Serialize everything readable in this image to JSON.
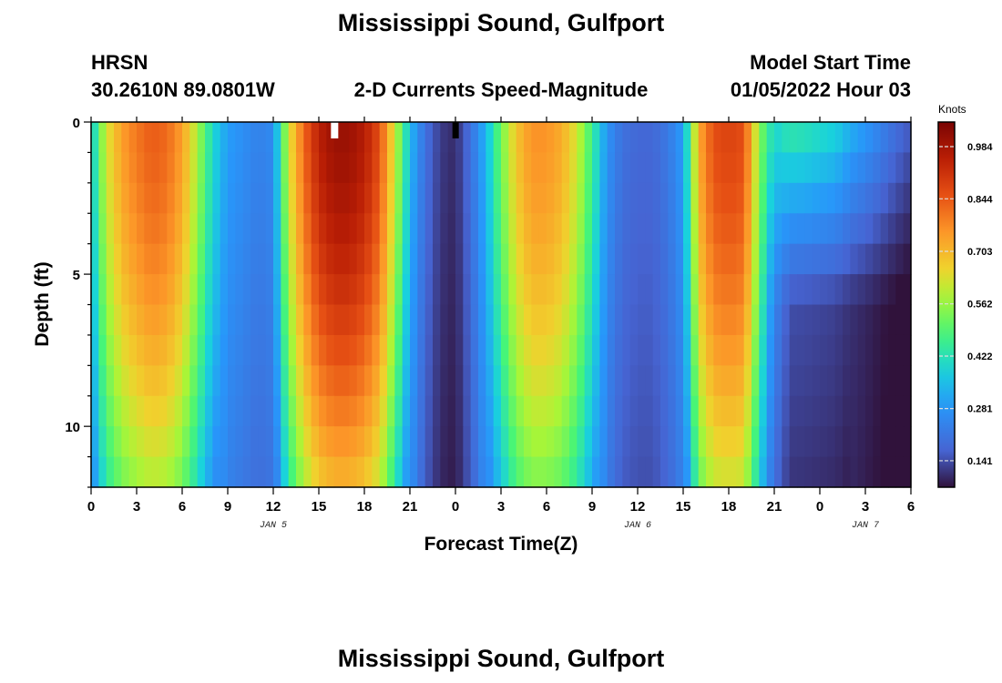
{
  "header": {
    "title": "Mississippi Sound, Gulfport",
    "station": "HRSN",
    "coords": "30.2610N  89.0801W",
    "subtitle": "2-D Currents Speed-Magnitude",
    "model_start_label": "Model Start Time",
    "model_start_value": "01/05/2022 Hour 03"
  },
  "footer": {
    "title": "Mississippi Sound, Gulfport"
  },
  "chart_data": {
    "type": "heatmap",
    "title": "2-D Currents Speed-Magnitude",
    "xlabel": "Forecast Time(Z)",
    "ylabel": "Depth (ft)",
    "colorbar_label": "Knots",
    "x_tick_labels": [
      "0",
      "3",
      "6",
      "9",
      "12",
      "15",
      "18",
      "21",
      "0",
      "3",
      "6",
      "9",
      "12",
      "15",
      "18",
      "21",
      "0",
      "3",
      "6"
    ],
    "x_hours": [
      0,
      3,
      6,
      9,
      12,
      15,
      18,
      21,
      24,
      27,
      30,
      33,
      36,
      39,
      42,
      45,
      48,
      51,
      54
    ],
    "date_labels": [
      {
        "text": "JAN 5",
        "hour": 12
      },
      {
        "text": "JAN 6",
        "hour": 36
      },
      {
        "text": "JAN 7",
        "hour": 51
      }
    ],
    "y_tick_labels": [
      "0",
      "5",
      "10"
    ],
    "y_ticks": [
      0,
      5,
      10
    ],
    "ylim": [
      0,
      12
    ],
    "xlim": [
      0,
      54
    ],
    "colorbar_ticks": [
      0.984,
      0.844,
      0.703,
      0.562,
      0.422,
      0.281,
      0.141
    ],
    "colorbar_range": [
      0.07,
      1.05
    ],
    "depths_ft": [
      0.5,
      1.5,
      2.5,
      3.5,
      4.5,
      5.5,
      6.5,
      7.5,
      8.5,
      9.5,
      10.5,
      11.5
    ],
    "surface_profile": [
      [
        0,
        0.35
      ],
      [
        0.5,
        0.5
      ],
      [
        1,
        0.62
      ],
      [
        2,
        0.74
      ],
      [
        3,
        0.8
      ],
      [
        4,
        0.84
      ],
      [
        5,
        0.82
      ],
      [
        6,
        0.74
      ],
      [
        7,
        0.58
      ],
      [
        8,
        0.4
      ],
      [
        9,
        0.3
      ],
      [
        10,
        0.27
      ],
      [
        11,
        0.24
      ],
      [
        12,
        0.26
      ],
      [
        12.5,
        0.45
      ],
      [
        13,
        0.62
      ],
      [
        14,
        0.82
      ],
      [
        15,
        0.95
      ],
      [
        16,
        1.0
      ],
      [
        17,
        1.0
      ],
      [
        18,
        0.96
      ],
      [
        19,
        0.86
      ],
      [
        20,
        0.62
      ],
      [
        21,
        0.35
      ],
      [
        22,
        0.2
      ],
      [
        23,
        0.12
      ],
      [
        24,
        0.1
      ],
      [
        25,
        0.2
      ],
      [
        26,
        0.34
      ],
      [
        27,
        0.52
      ],
      [
        28,
        0.68
      ],
      [
        29,
        0.76
      ],
      [
        30,
        0.76
      ],
      [
        31,
        0.72
      ],
      [
        32,
        0.62
      ],
      [
        33,
        0.46
      ],
      [
        34,
        0.28
      ],
      [
        35,
        0.2
      ],
      [
        36,
        0.18
      ],
      [
        37,
        0.18
      ],
      [
        38,
        0.22
      ],
      [
        39,
        0.3
      ],
      [
        39.5,
        0.5
      ],
      [
        40,
        0.72
      ],
      [
        41,
        0.86
      ],
      [
        42,
        0.88
      ],
      [
        43,
        0.86
      ],
      [
        44,
        0.55
      ],
      [
        45,
        0.4
      ],
      [
        46,
        0.45
      ],
      [
        47,
        0.44
      ],
      [
        48,
        0.42
      ],
      [
        49,
        0.4
      ],
      [
        50,
        0.34
      ],
      [
        51,
        0.3
      ],
      [
        52,
        0.25
      ],
      [
        53,
        0.2
      ],
      [
        54,
        0.16
      ]
    ]
  }
}
